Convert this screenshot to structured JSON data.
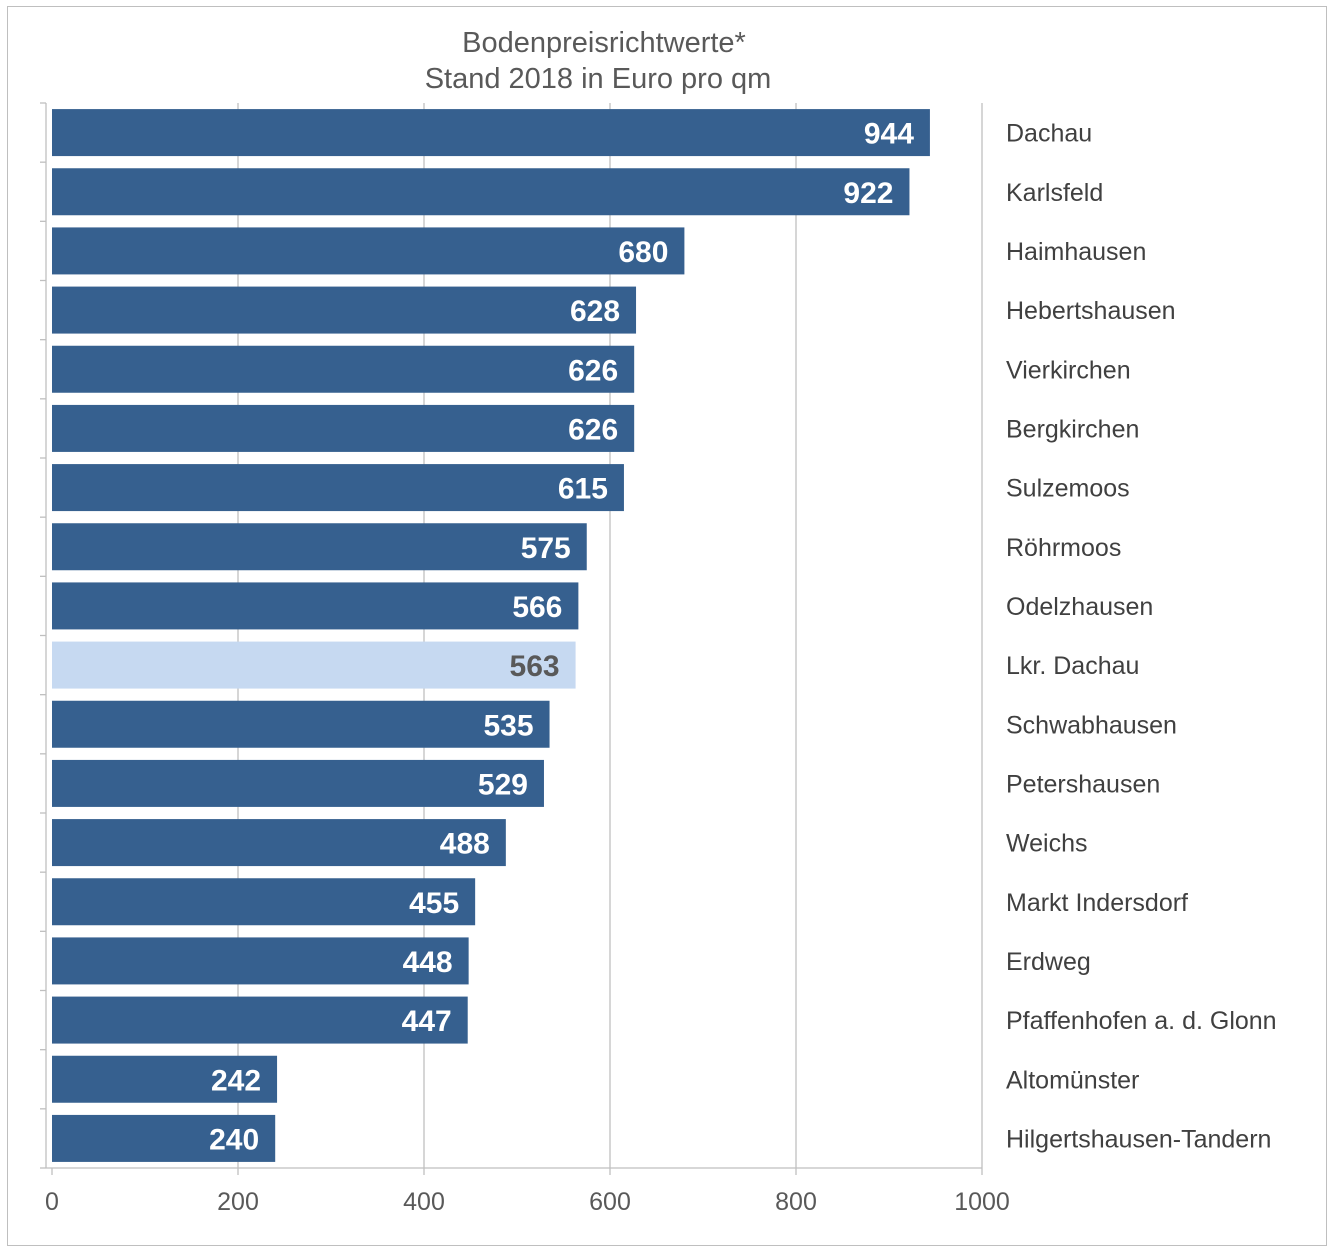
{
  "chart_data": {
    "type": "bar",
    "orientation": "horizontal",
    "title": [
      "Bodenpreisrichtwerte*",
      "Stand 2018 in Euro pro qm"
    ],
    "categories": [
      "Dachau",
      "Karlsfeld",
      "Haimhausen",
      "Hebertshausen",
      "Vierkirchen",
      "Bergkirchen",
      "Sulzemoos",
      "Röhrmoos",
      "Odelzhausen",
      "Lkr. Dachau",
      "Schwabhausen",
      "Petershausen",
      "Weichs",
      "Markt Indersdorf",
      "Erdweg",
      "Pfaffenhofen a. d. Glonn",
      "Altomünster",
      "Hilgertshausen-Tandern"
    ],
    "values": [
      944,
      922,
      680,
      628,
      626,
      626,
      615,
      575,
      566,
      563,
      535,
      529,
      488,
      455,
      448,
      447,
      242,
      240
    ],
    "highlight_category": "Lkr. Dachau",
    "xlim": [
      0,
      1000
    ],
    "xticks": [
      0,
      200,
      400,
      600,
      800,
      1000
    ],
    "grid": "vertical",
    "data_labels": "inside-end",
    "category_labels_position": "right",
    "colors": {
      "bar": "#36608f",
      "highlight_bar": "#c6d9f1",
      "label_on_bar": "#ffffff",
      "label_on_highlight": "#595959",
      "grid": "#bfbfbf",
      "axis": "#bfbfbf"
    }
  }
}
